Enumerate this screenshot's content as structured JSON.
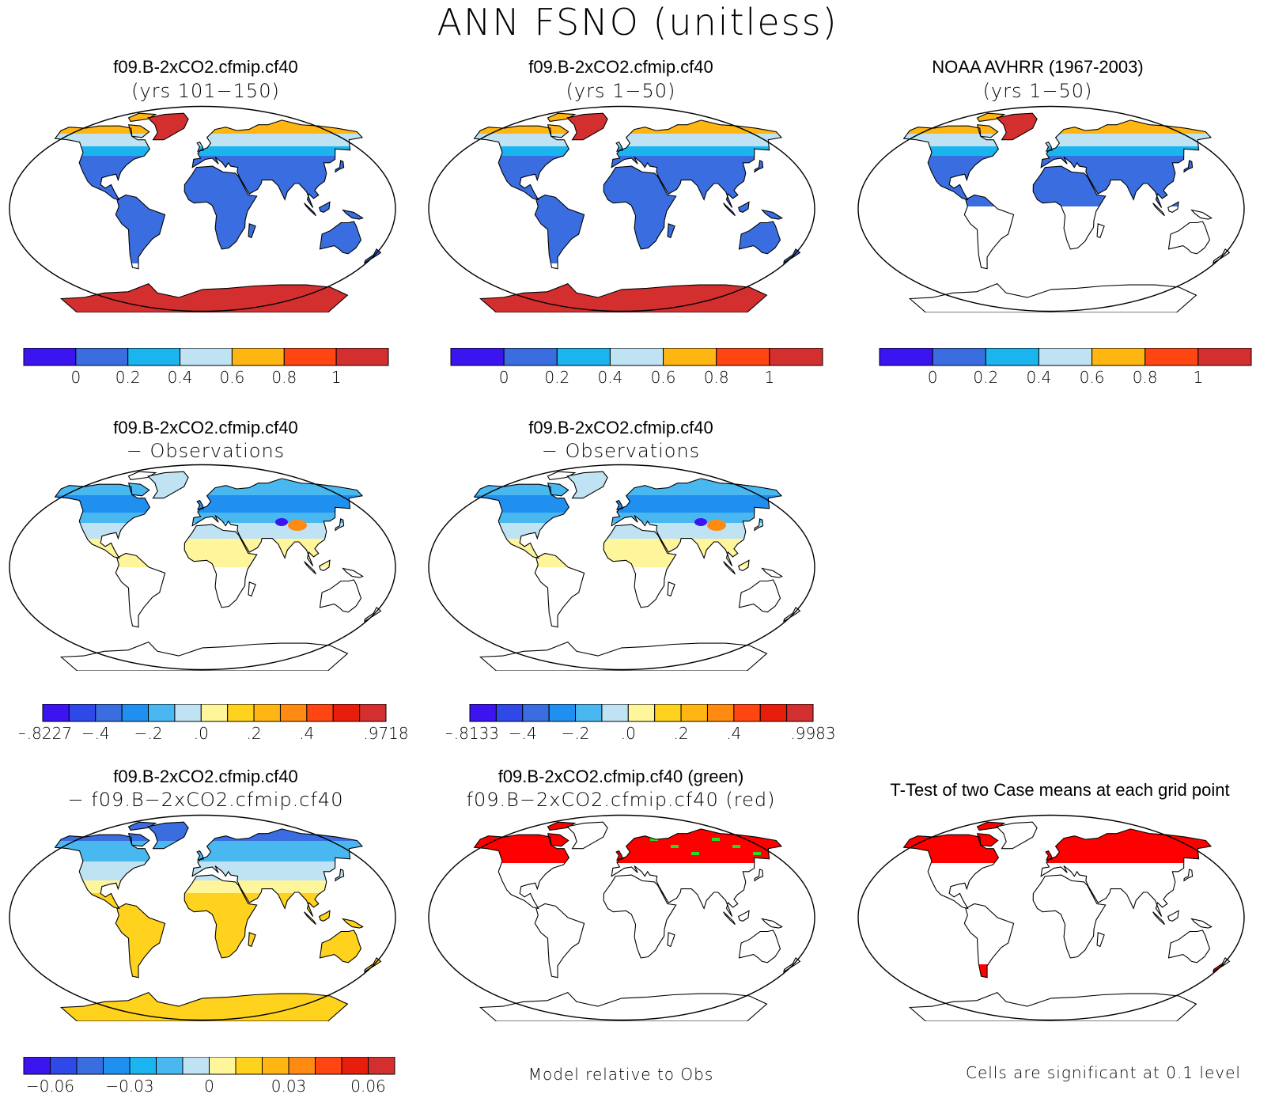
{
  "title": "ANN FSNO (unitless)",
  "rows": [
    {
      "panels": [
        {
          "title1": "f09.B-2xCO2.cfmip.cf40",
          "title2": "(yrs 101−150)",
          "kind": "abs_model"
        },
        {
          "title1": "f09.B-2xCO2.cfmip.cf40",
          "title2": "(yrs 1−50)",
          "kind": "abs_model"
        },
        {
          "title1": "NOAA AVHRR (1967-2003)",
          "title2": "(yrs 1−50)",
          "kind": "abs_obs"
        }
      ],
      "colorbars": [
        {
          "colors": [
            "#3b14f0",
            "#3a6ee0",
            "#1ab4ef",
            "#bfe3f2",
            "#ffb612",
            "#ff4612",
            "#d42f2f"
          ],
          "labels": [
            "0",
            "0.2",
            "0.4",
            "0.6",
            "0.8",
            "1"
          ],
          "label_at_edges": [
            1,
            2,
            3,
            4,
            5,
            6
          ]
        },
        {
          "colors": [
            "#3b14f0",
            "#3a6ee0",
            "#1ab4ef",
            "#bfe3f2",
            "#ffb612",
            "#ff4612",
            "#d42f2f"
          ],
          "labels": [
            "0",
            "0.2",
            "0.4",
            "0.6",
            "0.8",
            "1"
          ],
          "label_at_edges": [
            1,
            2,
            3,
            4,
            5,
            6
          ]
        },
        {
          "colors": [
            "#3b14f0",
            "#3a6ee0",
            "#1ab4ef",
            "#bfe3f2",
            "#ffb612",
            "#ff4612",
            "#d42f2f"
          ],
          "labels": [
            "0",
            "0.2",
            "0.4",
            "0.6",
            "0.8",
            "1"
          ],
          "label_at_edges": [
            1,
            2,
            3,
            4,
            5,
            6
          ]
        }
      ]
    },
    {
      "panels": [
        {
          "title1": "f09.B-2xCO2.cfmip.cf40",
          "title2": "− Observations",
          "kind": "diff_obs"
        },
        {
          "title1": "f09.B-2xCO2.cfmip.cf40",
          "title2": "− Observations",
          "kind": "diff_obs"
        }
      ],
      "colorbars": [
        {
          "colors": [
            "#3b14f0",
            "#2e49e8",
            "#3a6ee0",
            "#1f8ff0",
            "#4ab8f0",
            "#bfe3f2",
            "#fff59a",
            "#ffd21e",
            "#ffb612",
            "#ff8a12",
            "#ff4612",
            "#e81e0c",
            "#d42f2f"
          ],
          "labels": [
            "−.8227",
            "−.4",
            "−.2",
            ".0",
            ".2",
            ".4",
            ".9718"
          ],
          "label_at_edges": [
            0,
            2,
            4,
            6,
            8,
            10,
            13
          ]
        },
        {
          "colors": [
            "#3b14f0",
            "#2e49e8",
            "#3a6ee0",
            "#1f8ff0",
            "#4ab8f0",
            "#bfe3f2",
            "#fff59a",
            "#ffd21e",
            "#ffb612",
            "#ff8a12",
            "#ff4612",
            "#e81e0c",
            "#d42f2f"
          ],
          "labels": [
            "−.8133",
            "−.4",
            "−.2",
            ".0",
            ".2",
            ".4",
            ".9983"
          ],
          "label_at_edges": [
            0,
            2,
            4,
            6,
            8,
            10,
            13
          ]
        }
      ]
    },
    {
      "panels": [
        {
          "title1": "f09.B-2xCO2.cfmip.cf40",
          "title2": "− f09.B−2xCO2.cfmip.cf40",
          "kind": "diff_model"
        },
        {
          "title1": "f09.B-2xCO2.cfmip.cf40 (green)",
          "title2": "f09.B−2xCO2.cfmip.cf40 (red)",
          "kind": "rel_obs"
        },
        {
          "title1": "T-Test of two Case means at each grid point",
          "title2": "",
          "kind": "ttest"
        }
      ],
      "colorbars": [
        {
          "colors": [
            "#3b14f0",
            "#2e49e8",
            "#3a6ee0",
            "#1f8ff0",
            "#1ab4ef",
            "#4ab8f0",
            "#bfe3f2",
            "#fff59a",
            "#ffd21e",
            "#ffb612",
            "#ff8a12",
            "#ff4612",
            "#e81e0c",
            "#d42f2f"
          ],
          "labels": [
            "−0.06",
            "−0.03",
            "0",
            "0.03",
            "0.06"
          ],
          "label_at_edges": [
            1,
            4,
            7,
            10,
            13
          ]
        }
      ],
      "notes": {
        "rel_obs": "Model relative to Obs",
        "ttest": "Cells are significant at 0.1 level"
      }
    }
  ],
  "icons": {
    "map": "world-map-robinson"
  }
}
